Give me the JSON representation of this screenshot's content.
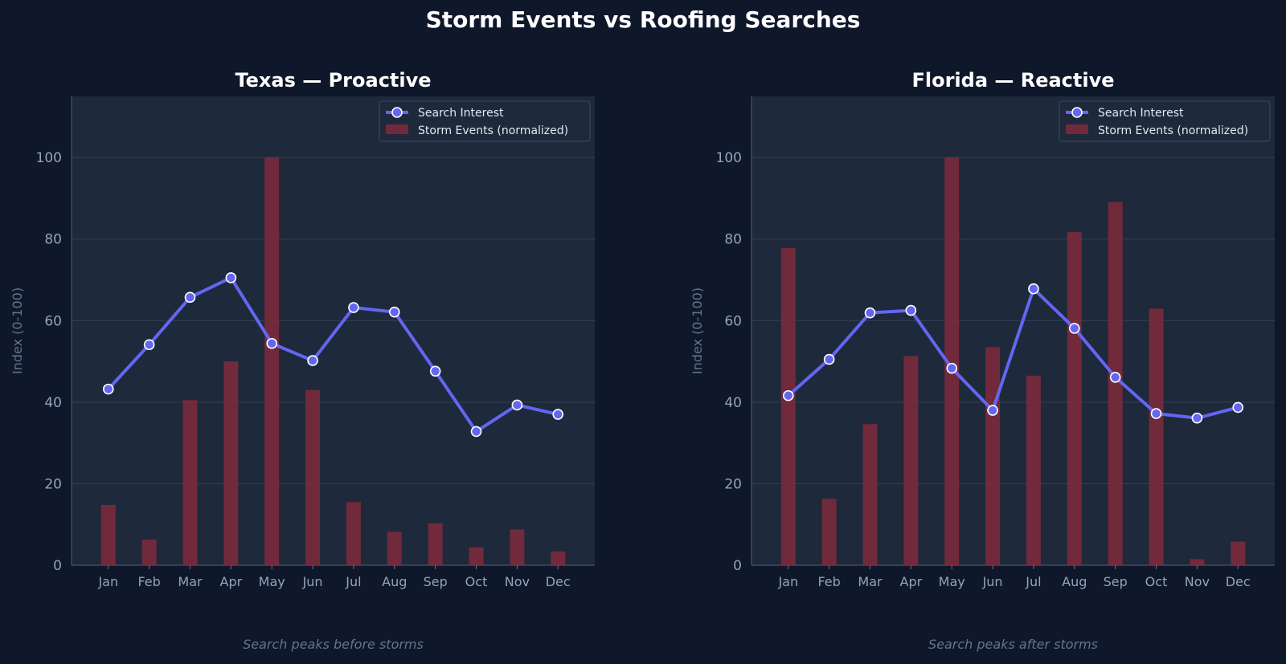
{
  "title": "Storm Events vs Roofing Searches",
  "colors": {
    "background": "#0f172a",
    "plot_bg": "#1e293b",
    "line": "#6366f1",
    "bar": "#7f2a3c",
    "grid": "#334155",
    "tick_text": "#94a3b8",
    "caption_text": "#64748b"
  },
  "chart_data": [
    {
      "type": "bar+line",
      "title": "Texas — Proactive",
      "ylabel": "Index (0-100)",
      "xlabel": "",
      "caption": "Search peaks before storms",
      "categories": [
        "Jan",
        "Feb",
        "Mar",
        "Apr",
        "May",
        "Jun",
        "Jul",
        "Aug",
        "Sep",
        "Oct",
        "Nov",
        "Dec"
      ],
      "ylim": [
        0,
        115
      ],
      "yticks": [
        0,
        20,
        40,
        60,
        80,
        100
      ],
      "grid": true,
      "legend_position": "top-right",
      "series": [
        {
          "name": "Search Interest",
          "type": "line",
          "values": [
            43.2,
            54.1,
            65.7,
            70.5,
            54.4,
            50.2,
            63.2,
            62.1,
            47.6,
            32.8,
            39.3,
            37.0
          ]
        },
        {
          "name": "Storm Events (normalized)",
          "type": "bar",
          "values": [
            14.8,
            6.3,
            40.5,
            50.0,
            100.0,
            43.0,
            15.5,
            8.2,
            10.3,
            4.4,
            8.8,
            3.4
          ]
        }
      ]
    },
    {
      "type": "bar+line",
      "title": "Florida — Reactive",
      "ylabel": "Index (0-100)",
      "xlabel": "",
      "caption": "Search peaks after storms",
      "categories": [
        "Jan",
        "Feb",
        "Mar",
        "Apr",
        "May",
        "Jun",
        "Jul",
        "Aug",
        "Sep",
        "Oct",
        "Nov",
        "Dec"
      ],
      "ylim": [
        0,
        115
      ],
      "yticks": [
        0,
        20,
        40,
        60,
        80,
        100
      ],
      "grid": true,
      "legend_position": "top-right",
      "series": [
        {
          "name": "Search Interest",
          "type": "line",
          "values": [
            41.6,
            50.5,
            61.9,
            62.5,
            48.3,
            38.0,
            67.8,
            58.1,
            46.1,
            37.2,
            36.1,
            38.7
          ]
        },
        {
          "name": "Storm Events (normalized)",
          "type": "bar",
          "values": [
            77.8,
            16.3,
            34.6,
            51.3,
            100.0,
            53.5,
            46.5,
            81.7,
            89.1,
            62.9,
            1.5,
            5.8
          ]
        }
      ]
    }
  ]
}
